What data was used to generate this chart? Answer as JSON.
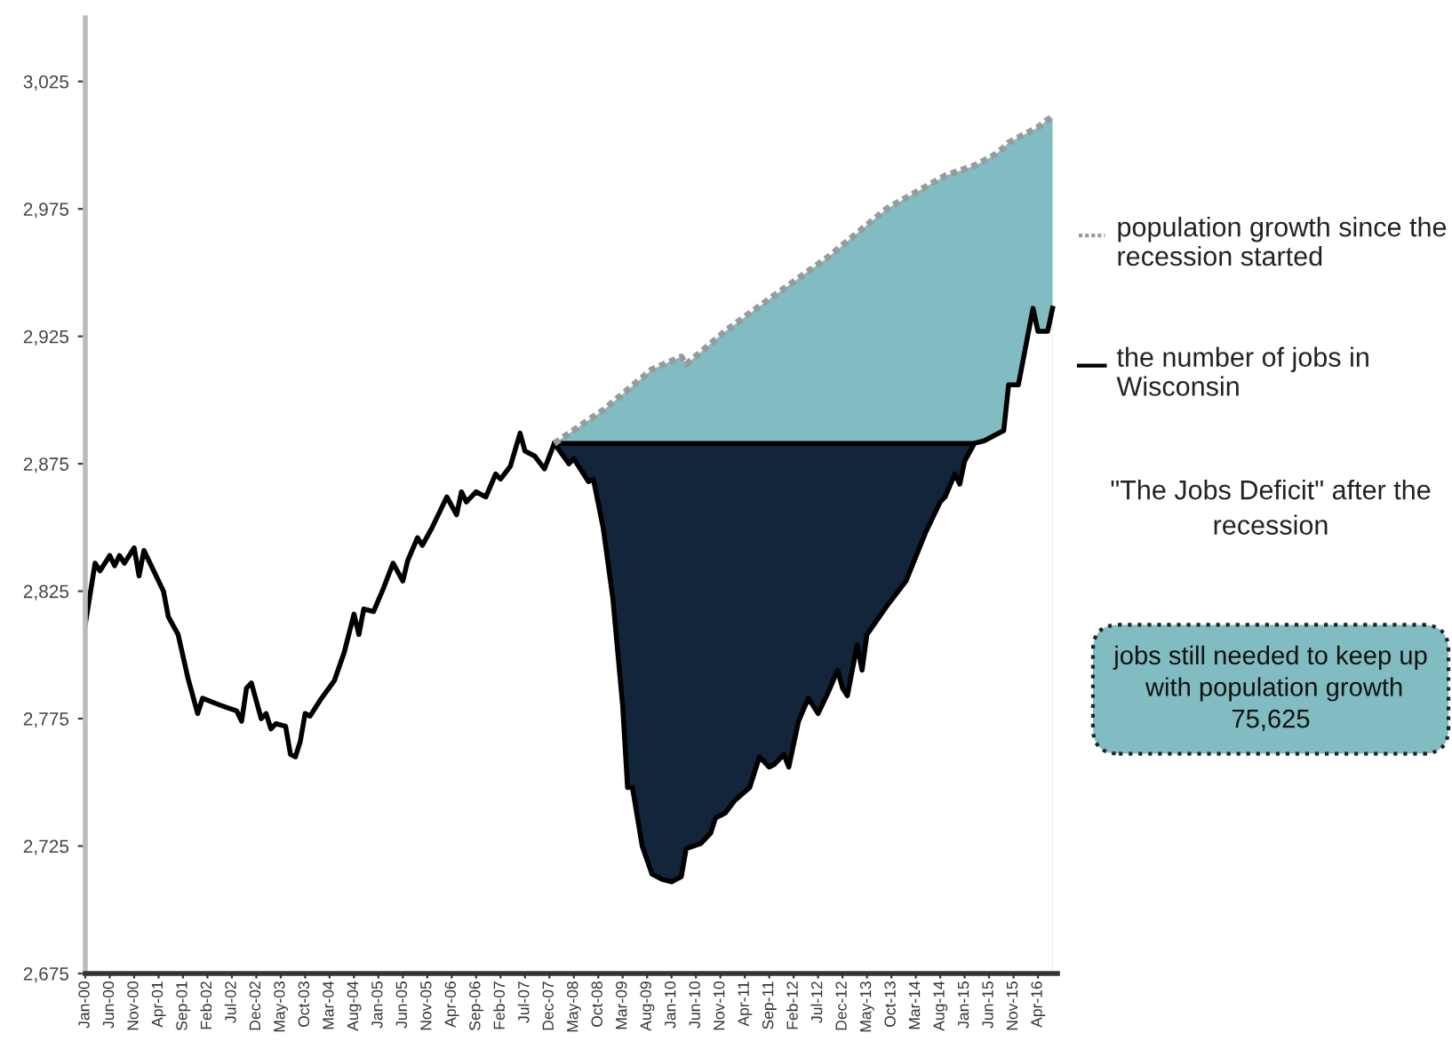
{
  "chart_data": {
    "type": "area",
    "legend": "right",
    "xlim": [
      "2000-01",
      "2016-08"
    ],
    "xticks": [
      {
        "value": "2000-01",
        "label": "Jan-00"
      },
      {
        "value": "2000-06",
        "label": "Jun-00"
      },
      {
        "value": "2000-11",
        "label": "Nov-00"
      },
      {
        "value": "2001-04",
        "label": "Apr-01"
      },
      {
        "value": "2001-09",
        "label": "Sep-01"
      },
      {
        "value": "2002-02",
        "label": "Feb-02"
      },
      {
        "value": "2002-07",
        "label": "Jul-02"
      },
      {
        "value": "2002-12",
        "label": "Dec-02"
      },
      {
        "value": "2003-05",
        "label": "May-03"
      },
      {
        "value": "2003-10",
        "label": "Oct-03"
      },
      {
        "value": "2004-03",
        "label": "Mar-04"
      },
      {
        "value": "2004-08",
        "label": "Aug-04"
      },
      {
        "value": "2005-01",
        "label": "Jan-05"
      },
      {
        "value": "2005-06",
        "label": "Jun-05"
      },
      {
        "value": "2005-11",
        "label": "Nov-05"
      },
      {
        "value": "2006-04",
        "label": "Apr-06"
      },
      {
        "value": "2006-09",
        "label": "Sep-06"
      },
      {
        "value": "2007-02",
        "label": "Feb-07"
      },
      {
        "value": "2007-07",
        "label": "Jul-07"
      },
      {
        "value": "2007-12",
        "label": "Dec-07"
      },
      {
        "value": "2008-05",
        "label": "May-08"
      },
      {
        "value": "2008-10",
        "label": "Oct-08"
      },
      {
        "value": "2009-03",
        "label": "Mar-09"
      },
      {
        "value": "2009-08",
        "label": "Aug-09"
      },
      {
        "value": "2010-01",
        "label": "Jan-10"
      },
      {
        "value": "2010-06",
        "label": "Jun-10"
      },
      {
        "value": "2010-11",
        "label": "Nov-10"
      },
      {
        "value": "2011-04",
        "label": "Apr-11"
      },
      {
        "value": "2011-09",
        "label": "Sep-11"
      },
      {
        "value": "2012-02",
        "label": "Feb-12"
      },
      {
        "value": "2012-07",
        "label": "Jul-12"
      },
      {
        "value": "2012-12",
        "label": "Dec-12"
      },
      {
        "value": "2013-05",
        "label": "May-13"
      },
      {
        "value": "2013-10",
        "label": "Oct-13"
      },
      {
        "value": "2014-03",
        "label": "Mar-14"
      },
      {
        "value": "2014-08",
        "label": "Aug-14"
      },
      {
        "value": "2015-01",
        "label": "Jan-15"
      },
      {
        "value": "2015-06",
        "label": "Jun-15"
      },
      {
        "value": "2015-11",
        "label": "Nov-15"
      },
      {
        "value": "2016-04",
        "label": "Apr-16"
      }
    ],
    "ylim": [
      2675,
      3050
    ],
    "yticks": [
      {
        "value": 2675,
        "label": "2,675"
      },
      {
        "value": 2725,
        "label": "2,725"
      },
      {
        "value": 2775,
        "label": "2,775"
      },
      {
        "value": 2825,
        "label": "2,825"
      },
      {
        "value": 2875,
        "label": "2,875"
      },
      {
        "value": 2925,
        "label": "2,925"
      },
      {
        "value": 2975,
        "label": "2,975"
      },
      {
        "value": 3025,
        "label": "3,025"
      }
    ],
    "annotations": [
      "\"The Jobs Deficit\" after the recession",
      "jobs still needed to keep up  with population growth 75,625"
    ],
    "series": [
      {
        "name": "population growth since the recession started",
        "color": "#80bcc1",
        "line_style": "dotted",
        "x": [
          "2008-01",
          "2008-11",
          "2009-09",
          "2010-03",
          "2010-04",
          "2010-12",
          "2011-10",
          "2012-09",
          "2013-09",
          "2014-09",
          "2015-03",
          "2015-05",
          "2015-07",
          "2015-09",
          "2015-10",
          "2015-12",
          "2016-01",
          "2016-02",
          "2016-03",
          "2016-04",
          "2016-06",
          "2016-07"
        ],
        "values": [
          2883,
          2896,
          2912,
          2917,
          2914,
          2927,
          2941,
          2956,
          2975,
          2988,
          2992,
          2994,
          2996,
          2999,
          3001,
          3003,
          3004,
          3005,
          3006,
          3007,
          3010,
          3011
        ]
      },
      {
        "color": "#13253a",
        "line_style": "solid",
        "x": [
          "2008-01",
          "2015-03"
        ],
        "values": [
          2883,
          2883
        ]
      },
      {
        "name": "the number of jobs in Wisconsin",
        "color": "#ffffff",
        "line_style": "solid",
        "x": [
          "2000-01",
          "2000-03",
          "2000-04",
          "2000-06",
          "2000-07",
          "2000-08",
          "2000-09",
          "2000-11",
          "2000-12",
          "2001-01",
          "2001-05",
          "2001-06",
          "2001-08",
          "2001-10",
          "2001-12",
          "2002-01",
          "2002-05",
          "2002-08",
          "2002-09",
          "2002-10",
          "2002-11",
          "2003-01",
          "2003-02",
          "2003-03",
          "2003-04",
          "2003-06",
          "2003-07",
          "2003-08",
          "2003-09",
          "2003-10",
          "2003-11",
          "2004-01",
          "2004-04",
          "2004-06",
          "2004-08",
          "2004-09",
          "2004-10",
          "2004-12",
          "2005-02",
          "2005-04",
          "2005-06",
          "2005-07",
          "2005-09",
          "2005-10",
          "2005-12",
          "2006-03",
          "2006-05",
          "2006-06",
          "2006-07",
          "2006-09",
          "2006-11",
          "2007-01",
          "2007-02",
          "2007-04",
          "2007-06",
          "2007-07",
          "2007-09",
          "2007-11",
          "2008-01",
          "2008-04",
          "2008-05",
          "2008-08",
          "2008-09",
          "2008-11",
          "2009-01",
          "2009-03",
          "2009-04",
          "2009-05",
          "2009-07",
          "2009-09",
          "2009-11",
          "2010-01",
          "2010-03",
          "2010-04",
          "2010-07",
          "2010-09",
          "2010-10",
          "2010-12",
          "2011-02",
          "2011-05",
          "2011-07",
          "2011-09",
          "2011-10",
          "2011-12",
          "2012-01",
          "2012-03",
          "2012-05",
          "2012-07",
          "2012-09",
          "2012-11",
          "2012-12",
          "2013-01",
          "2013-03",
          "2013-04",
          "2013-05",
          "2013-09",
          "2014-01",
          "2014-05",
          "2014-08",
          "2014-09",
          "2014-11",
          "2014-12",
          "2015-01",
          "2015-03",
          "2015-05",
          "2015-07",
          "2015-09",
          "2015-10",
          "2015-12",
          "2016-01",
          "2016-02",
          "2016-03",
          "2016-04",
          "2016-06",
          "2016-07"
        ],
        "values": [
          2812,
          2836,
          2833,
          2839,
          2835,
          2839,
          2836,
          2842,
          2831,
          2841,
          2825,
          2815,
          2808,
          2791,
          2777,
          2783,
          2780,
          2778,
          2774,
          2787,
          2789,
          2775,
          2777,
          2771,
          2773,
          2772,
          2761,
          2760,
          2766,
          2777,
          2776,
          2782,
          2790,
          2801,
          2816,
          2808,
          2818,
          2817,
          2826,
          2836,
          2829,
          2837,
          2846,
          2843,
          2850,
          2862,
          2855,
          2864,
          2860,
          2864,
          2862,
          2871,
          2869,
          2874,
          2887,
          2880,
          2878,
          2873,
          2883,
          2875,
          2877,
          2868,
          2869,
          2850,
          2822,
          2780,
          2748,
          2748,
          2725,
          2714,
          2712,
          2711,
          2713,
          2724,
          2726,
          2730,
          2736,
          2738,
          2743,
          2748,
          2760,
          2756,
          2757,
          2761,
          2756,
          2774,
          2783,
          2777,
          2785,
          2794,
          2787,
          2784,
          2804,
          2794,
          2808,
          2819,
          2829,
          2848,
          2860,
          2862,
          2871,
          2867,
          2876,
          2883,
          2884,
          2886,
          2888,
          2906,
          2906,
          2916,
          2926,
          2936,
          2927,
          2927,
          2936
        ]
      }
    ]
  }
}
